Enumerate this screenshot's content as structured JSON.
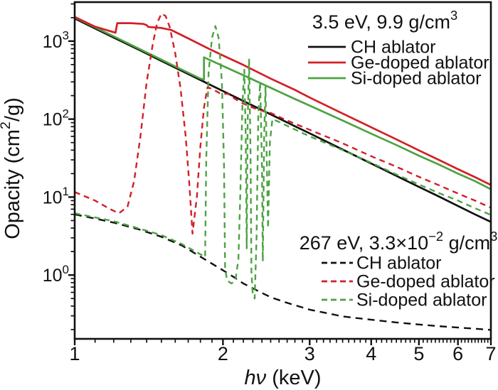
{
  "chart_data": {
    "type": "line",
    "x_scale": "log",
    "y_scale": "log",
    "xlim": [
      1,
      7
    ],
    "ylim": [
      0.152,
      3162
    ],
    "x_ticks": [
      1,
      2,
      3,
      4,
      5,
      6,
      7
    ],
    "y_ticks": [
      {
        "value": 1,
        "base": "10",
        "exp": "0"
      },
      {
        "value": 10,
        "base": "10",
        "exp": "1"
      },
      {
        "value": 100,
        "base": "10",
        "exp": "2"
      },
      {
        "value": 1000,
        "base": "10",
        "exp": "3"
      }
    ],
    "xlabel_rich": [
      {
        "t": "hν",
        "i": true
      },
      {
        "t": " (keV)"
      }
    ],
    "ylabel_rich": [
      {
        "t": "Opacity (cm"
      },
      {
        "t": "2",
        "sup": true
      },
      {
        "t": "/g)"
      }
    ],
    "colors": {
      "black": "#111111",
      "red": "#d31f26",
      "green": "#4ea244"
    },
    "legends": [
      {
        "id": "solid-conditions",
        "title_rich": [
          {
            "t": "3.5 eV, 9.9 g/cm"
          },
          {
            "t": "3",
            "sup": true
          }
        ],
        "entries": [
          {
            "label": "CH ablator",
            "series": "ch-solid"
          },
          {
            "label": "Ge-doped ablator",
            "series": "ge-solid"
          },
          {
            "label": "Si-doped ablator",
            "series": "si-solid"
          }
        ]
      },
      {
        "id": "dashed-conditions",
        "title_rich": [
          {
            "t": "267 eV, 3.3×10"
          },
          {
            "t": "−2",
            "sup": true
          },
          {
            "t": " g/cm"
          },
          {
            "t": "3",
            "sup": true
          }
        ],
        "entries": [
          {
            "label": "CH ablator",
            "series": "ch-dashed"
          },
          {
            "label": "Ge-doped ablator",
            "series": "ge-dashed"
          },
          {
            "label": "Si-doped ablator",
            "series": "si-dashed"
          }
        ]
      }
    ],
    "series": [
      {
        "id": "ch-solid",
        "name": "CH ablator (3.5 eV, 9.9 g/cm3)",
        "color": "black",
        "dash": null,
        "points": [
          [
            1,
            1950
          ],
          [
            1.1,
            1450
          ],
          [
            1.2,
            1110
          ],
          [
            1.35,
            775
          ],
          [
            1.5,
            557
          ],
          [
            1.65,
            415
          ],
          [
            1.8,
            317
          ],
          [
            2,
            229
          ],
          [
            2.2,
            171
          ],
          [
            2.5,
            115
          ],
          [
            2.8,
            81
          ],
          [
            3,
            65.7
          ],
          [
            3.5,
            40.7
          ],
          [
            4,
            26.9
          ],
          [
            4.5,
            18.7
          ],
          [
            5,
            13.5
          ],
          [
            5.5,
            10.1
          ],
          [
            6,
            7.7
          ],
          [
            6.5,
            6
          ],
          [
            7,
            4.8
          ]
        ]
      },
      {
        "id": "si-solid",
        "name": "Si-doped ablator (3.5 eV, 9.9 g/cm3)",
        "color": "green",
        "dash": null,
        "points": [
          [
            1,
            2020
          ],
          [
            1.1,
            1500
          ],
          [
            1.2,
            1150
          ],
          [
            1.35,
            800
          ],
          [
            1.5,
            578
          ],
          [
            1.65,
            430
          ],
          [
            1.8,
            330
          ],
          [
            1.83,
            320
          ],
          [
            1.83,
            620
          ],
          [
            2,
            480
          ],
          [
            2.2,
            365
          ],
          [
            2.5,
            252
          ],
          [
            2.8,
            181
          ],
          [
            3,
            149
          ],
          [
            3.5,
            96
          ],
          [
            4,
            65
          ],
          [
            4.5,
            46.5
          ],
          [
            5,
            34
          ],
          [
            5.5,
            26
          ],
          [
            6,
            20
          ],
          [
            6.5,
            16
          ],
          [
            7,
            12.6
          ]
        ]
      },
      {
        "id": "ge-solid",
        "name": "Ge-doped ablator (3.5 eV, 9.9 g/cm3)",
        "color": "red",
        "dash": null,
        "points": [
          [
            1,
            2040
          ],
          [
            1.1,
            1530
          ],
          [
            1.21,
            1280
          ],
          [
            1.22,
            1700
          ],
          [
            1.3,
            1700
          ],
          [
            1.38,
            1660
          ],
          [
            1.4,
            1600
          ],
          [
            1.41,
            1520
          ],
          [
            1.5,
            1475
          ],
          [
            1.57,
            1390
          ],
          [
            1.7,
            1085
          ],
          [
            1.85,
            830
          ],
          [
            2,
            655
          ],
          [
            2.2,
            495
          ],
          [
            2.5,
            330
          ],
          [
            2.8,
            237
          ],
          [
            3,
            189
          ],
          [
            3.5,
            118
          ],
          [
            4,
            78.5
          ],
          [
            4.5,
            55
          ],
          [
            5,
            39.7
          ],
          [
            5.5,
            29.8
          ],
          [
            6,
            22.8
          ],
          [
            6.5,
            18
          ],
          [
            7,
            14.3
          ]
        ]
      },
      {
        "id": "ch-dashed",
        "name": "CH ablator (267 eV, 3.3e-2 g/cm3)",
        "color": "black",
        "dash": [
          10,
          7
        ],
        "points": [
          [
            1,
            6
          ],
          [
            1.1,
            5.3
          ],
          [
            1.2,
            4.7
          ],
          [
            1.35,
            3.85
          ],
          [
            1.5,
            3.1
          ],
          [
            1.65,
            2.4
          ],
          [
            1.8,
            1.72
          ],
          [
            1.9,
            1.4
          ],
          [
            2,
            1.15
          ],
          [
            2.1,
            0.95
          ],
          [
            2.2,
            0.78
          ],
          [
            2.35,
            0.63
          ],
          [
            2.5,
            0.52
          ],
          [
            2.7,
            0.44
          ],
          [
            3,
            0.36
          ],
          [
            3.5,
            0.295
          ],
          [
            4,
            0.267
          ],
          [
            4.5,
            0.247
          ],
          [
            5,
            0.232
          ],
          [
            5.5,
            0.221
          ],
          [
            6,
            0.212
          ],
          [
            6.5,
            0.205
          ],
          [
            7,
            0.198
          ]
        ]
      },
      {
        "id": "ge-dashed",
        "name": "Ge-doped ablator (267 eV, 3.3e-2 g/cm3)",
        "color": "red",
        "dash": [
          8,
          6
        ],
        "points": [
          [
            1,
            11.6
          ],
          [
            1.1,
            9
          ],
          [
            1.18,
            7
          ],
          [
            1.23,
            6.2
          ],
          [
            1.28,
            7.5
          ],
          [
            1.32,
            16
          ],
          [
            1.36,
            60
          ],
          [
            1.4,
            300
          ],
          [
            1.44,
            900
          ],
          [
            1.47,
            1700
          ],
          [
            1.5,
            2250
          ],
          [
            1.53,
            2100
          ],
          [
            1.56,
            1500
          ],
          [
            1.6,
            700
          ],
          [
            1.64,
            250
          ],
          [
            1.68,
            60
          ],
          [
            1.71,
            14
          ],
          [
            1.735,
            3.4
          ],
          [
            1.77,
            10
          ],
          [
            1.8,
            45
          ],
          [
            1.83,
            140
          ],
          [
            1.86,
            255
          ],
          [
            1.9,
            245
          ],
          [
            1.97,
            215
          ],
          [
            2.05,
            210
          ],
          [
            2.12,
            180
          ],
          [
            2.2,
            158
          ],
          [
            2.3,
            140
          ],
          [
            2.4,
            128
          ],
          [
            2.5,
            120
          ],
          [
            2.7,
            96
          ],
          [
            3,
            73
          ],
          [
            3.5,
            49
          ],
          [
            4,
            33.4
          ],
          [
            4.5,
            24.5
          ],
          [
            5,
            18.2
          ],
          [
            5.5,
            14.1
          ],
          [
            6,
            11.1
          ],
          [
            6.5,
            9
          ],
          [
            7,
            7.3
          ]
        ]
      },
      {
        "id": "si-dashed",
        "name": "Si-doped ablator (267 eV, 3.3e-2 g/cm3)",
        "color": "green",
        "dash": [
          8,
          6
        ],
        "points": [
          [
            1,
            6.2
          ],
          [
            1.2,
            4.9
          ],
          [
            1.4,
            3.7
          ],
          [
            1.5,
            3.25
          ],
          [
            1.65,
            2.5
          ],
          [
            1.8,
            1.85
          ],
          [
            1.84,
            1.7
          ],
          [
            1.85,
            30
          ],
          [
            1.87,
            400
          ],
          [
            1.9,
            1100
          ],
          [
            1.93,
            1560
          ],
          [
            1.96,
            1100
          ],
          [
            1.99,
            300
          ],
          [
            2.01,
            25
          ],
          [
            2.02,
            1.2
          ],
          [
            2.04,
            0.85
          ],
          [
            2.08,
            0.78
          ],
          [
            2.12,
            0.85
          ],
          [
            2.15,
            1.6
          ],
          [
            2.17,
            12
          ],
          [
            2.19,
            150
          ],
          [
            2.21,
            430
          ],
          [
            2.225,
            60
          ],
          [
            2.235,
            2.2
          ],
          [
            2.245,
            90
          ],
          [
            2.26,
            580
          ],
          [
            2.275,
            40
          ],
          [
            2.285,
            1.1
          ],
          [
            2.3,
            0.55
          ],
          [
            2.32,
            0.5
          ],
          [
            2.34,
            3
          ],
          [
            2.36,
            120
          ],
          [
            2.38,
            300
          ],
          [
            2.4,
            25
          ],
          [
            2.41,
            1.5
          ],
          [
            2.425,
            60
          ],
          [
            2.44,
            260
          ],
          [
            2.455,
            30
          ],
          [
            2.47,
            4
          ],
          [
            2.49,
            50
          ],
          [
            2.52,
            100
          ],
          [
            2.6,
            92
          ],
          [
            2.7,
            82
          ],
          [
            3,
            60
          ],
          [
            3.5,
            40
          ],
          [
            4,
            27.5
          ],
          [
            4.5,
            19.5
          ],
          [
            5,
            14.5
          ],
          [
            5.5,
            11.2
          ],
          [
            6,
            9
          ],
          [
            6.5,
            7.2
          ],
          [
            7,
            5.9
          ]
        ]
      }
    ]
  }
}
